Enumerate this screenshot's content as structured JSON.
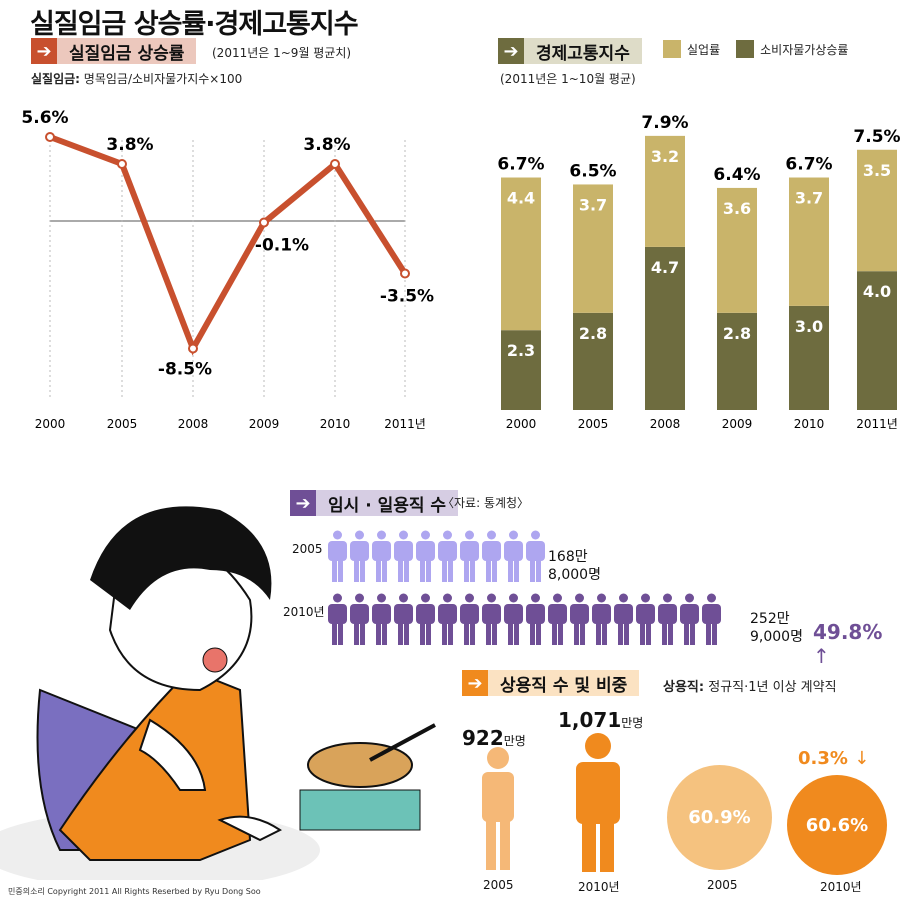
{
  "title": "실질임금 상승률·경제고통지수",
  "colors": {
    "line": "#c8502e",
    "unemployment": "#c9b46a",
    "inflation": "#6e6c3f",
    "temp": "#6f4f96",
    "temp_light": "#aea6f0",
    "regular": "#f08a1e",
    "regular_light": "#f5b877"
  },
  "wage": {
    "header": "실질임금 상승률",
    "note": "(2011년은 1~9월 평균치)",
    "def_label": "실질임금:",
    "def_text": "명목임금/소비자물가지수×100",
    "arrow_icon": "arrow-right-icon"
  },
  "pain": {
    "header": "경제고통지수",
    "note": "(2011년은 1~10월 평균)"
  },
  "temp": {
    "header": "임시 · 일용직 수",
    "source": "〈자료: 통계청〉",
    "rows": [
      {
        "year": "2005",
        "line1": "168만",
        "line2": "8,000명",
        "figures": 10
      },
      {
        "year": "2010년",
        "line1": "252만",
        "line2": "9,000명",
        "figures": 18
      }
    ],
    "change": "49.8%",
    "change_arrow": "↑"
  },
  "regular": {
    "header": "상용직 수 및 비중",
    "def_label": "상용직:",
    "def_text": "정규직·1년 이상 계약직",
    "counts": [
      {
        "year": "2005",
        "num": "922",
        "unit": "만명"
      },
      {
        "year": "2010년",
        "num": "1,071",
        "unit": "만명"
      }
    ],
    "shares": [
      {
        "year": "2005",
        "value": "60.9%"
      },
      {
        "year": "2010년",
        "value": "60.6%"
      }
    ],
    "change": "0.3%",
    "change_arrow": "↓"
  },
  "copyright": "민중의소리 Copyright 2011 All Rights Reserbed by Ryu Dong Soo",
  "chart_data": [
    {
      "type": "line",
      "title": "실질임금 상승률",
      "categories": [
        "2000",
        "2005",
        "2008",
        "2009",
        "2010",
        "2011년"
      ],
      "values": [
        5.6,
        3.8,
        -8.5,
        -0.1,
        3.8,
        -3.5
      ],
      "labels": [
        "5.6%",
        "3.8%",
        "-8.5%",
        "-0.1%",
        "3.8%",
        "-3.5%"
      ]
    },
    {
      "type": "bar",
      "stacked": true,
      "title": "경제고통지수",
      "categories": [
        "2000",
        "2005",
        "2008",
        "2009",
        "2010",
        "2011년"
      ],
      "series": [
        {
          "name": "소비자물가상승률",
          "values": [
            2.3,
            2.8,
            4.7,
            2.8,
            3.0,
            4.0
          ]
        },
        {
          "name": "실업률",
          "values": [
            4.4,
            3.7,
            3.2,
            3.6,
            3.7,
            3.5
          ]
        }
      ],
      "totals": [
        "6.7%",
        "6.5%",
        "7.9%",
        "6.4%",
        "6.7%",
        "7.5%"
      ],
      "legend": [
        "실업률",
        "소비자물가상승률"
      ]
    },
    {
      "type": "pie",
      "title": "상용직 비중",
      "categories": [
        "2005",
        "2010년"
      ],
      "values": [
        60.9,
        60.6
      ]
    }
  ]
}
